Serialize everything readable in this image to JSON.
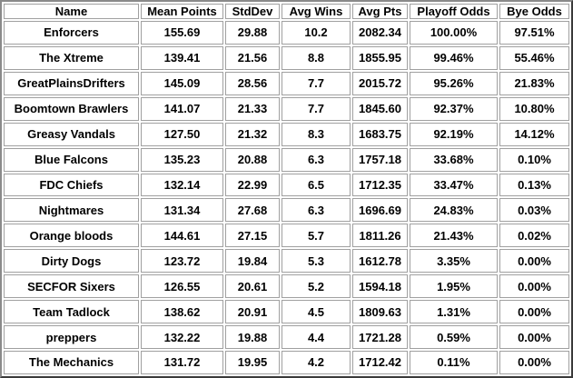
{
  "table": {
    "header": [
      "Name",
      "Mean Points",
      "StdDev",
      "Avg Wins",
      "Avg Pts",
      "Playoff Odds",
      "Bye Odds"
    ],
    "rows": [
      [
        "Enforcers",
        "155.69",
        "29.88",
        "10.2",
        "2082.34",
        "100.00%",
        "97.51%"
      ],
      [
        "The Xtreme",
        "139.41",
        "21.56",
        "8.8",
        "1855.95",
        "99.46%",
        "55.46%"
      ],
      [
        "GreatPlainsDrifters",
        "145.09",
        "28.56",
        "7.7",
        "2015.72",
        "95.26%",
        "21.83%"
      ],
      [
        "Boomtown Brawlers",
        "141.07",
        "21.33",
        "7.7",
        "1845.60",
        "92.37%",
        "10.80%"
      ],
      [
        "Greasy Vandals",
        "127.50",
        "21.32",
        "8.3",
        "1683.75",
        "92.19%",
        "14.12%"
      ],
      [
        "Blue Falcons",
        "135.23",
        "20.88",
        "6.3",
        "1757.18",
        "33.68%",
        "0.10%"
      ],
      [
        "FDC Chiefs",
        "132.14",
        "22.99",
        "6.5",
        "1712.35",
        "33.47%",
        "0.13%"
      ],
      [
        "Nightmares",
        "131.34",
        "27.68",
        "6.3",
        "1696.69",
        "24.83%",
        "0.03%"
      ],
      [
        "Orange bloods",
        "144.61",
        "27.15",
        "5.7",
        "1811.26",
        "21.43%",
        "0.02%"
      ],
      [
        "Dirty Dogs",
        "123.72",
        "19.84",
        "5.3",
        "1612.78",
        "3.35%",
        "0.00%"
      ],
      [
        "SECFOR Sixers",
        "126.55",
        "20.61",
        "5.2",
        "1594.18",
        "1.95%",
        "0.00%"
      ],
      [
        "Team Tadlock",
        "138.62",
        "20.91",
        "4.5",
        "1809.63",
        "1.31%",
        "0.00%"
      ],
      [
        "preppers",
        "132.22",
        "19.88",
        "4.4",
        "1721.28",
        "0.59%",
        "0.00%"
      ],
      [
        "The Mechanics",
        "131.72",
        "19.95",
        "4.2",
        "1712.42",
        "0.11%",
        "0.00%"
      ]
    ]
  }
}
